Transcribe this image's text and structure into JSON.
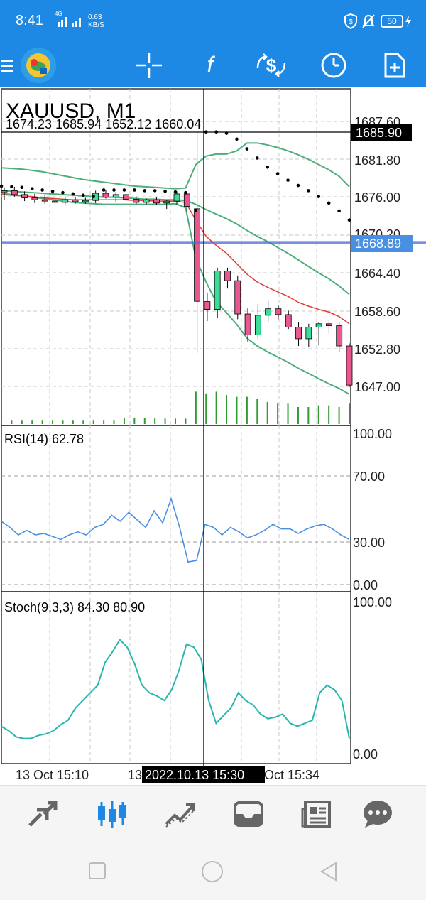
{
  "status_bar": {
    "time": "8:41",
    "network": "4G",
    "speed_value": "0.63",
    "speed_unit": "KB/S",
    "battery": "50"
  },
  "toolbar": {
    "items": [
      "menu-icon",
      "app-logo",
      "crosshair-icon",
      "indicators-icon",
      "trade-icon",
      "timeframe-icon",
      "add-object-icon"
    ]
  },
  "main_chart": {
    "symbol_title": "XAUUSD, M1",
    "ohlc": "1674.23 1685.94 1652.12 1660.04",
    "price_labels": [
      "1687.60",
      "1681.80",
      "1676.00",
      "1670.20",
      "1664.40",
      "1658.60",
      "1652.80",
      "1647.00"
    ],
    "crosshair_price": "1685.90",
    "bid_line_price": "1668.89",
    "crosshair_time": "2022.10.13 15:30",
    "time_labels": [
      "13 Oct 15:10",
      "13",
      "Oct 15:34"
    ]
  },
  "rsi": {
    "title": "RSI(14) 62.78",
    "levels": [
      "100.00",
      "70.00",
      "30.00",
      "0.00"
    ]
  },
  "stoch": {
    "title": "Stoch(9,3,3) 84.30 80.90",
    "levels": [
      "100.00",
      "0.00"
    ]
  },
  "colors": {
    "accent": "#1e88e5",
    "bull": "#3ddc97",
    "bear": "#e8578f",
    "ma_red": "#e53935",
    "bands_green": "#4caf7a",
    "rsi_line": "#4a90e2",
    "stoch_line": "#29b6ac",
    "bid_line": "#4a6bd8"
  },
  "chart_data": {
    "type": "candlestick",
    "candles": [
      {
        "o": 1676.8,
        "h": 1677.5,
        "l": 1675.6,
        "c": 1677.0
      },
      {
        "o": 1677.0,
        "h": 1677.6,
        "l": 1676.0,
        "c": 1676.4
      },
      {
        "o": 1676.4,
        "h": 1676.9,
        "l": 1675.4,
        "c": 1675.9
      },
      {
        "o": 1675.9,
        "h": 1676.5,
        "l": 1675.1,
        "c": 1675.6
      },
      {
        "o": 1675.6,
        "h": 1676.4,
        "l": 1675.0,
        "c": 1675.4
      },
      {
        "o": 1675.4,
        "h": 1675.9,
        "l": 1674.8,
        "c": 1675.2
      },
      {
        "o": 1675.2,
        "h": 1676.0,
        "l": 1674.9,
        "c": 1675.6
      },
      {
        "o": 1675.6,
        "h": 1676.0,
        "l": 1675.0,
        "c": 1675.3
      },
      {
        "o": 1675.3,
        "h": 1675.9,
        "l": 1675.0,
        "c": 1675.5
      },
      {
        "o": 1675.5,
        "h": 1677.0,
        "l": 1675.1,
        "c": 1676.6
      },
      {
        "o": 1676.6,
        "h": 1677.1,
        "l": 1675.8,
        "c": 1676.0
      },
      {
        "o": 1676.0,
        "h": 1676.8,
        "l": 1675.2,
        "c": 1676.4
      },
      {
        "o": 1676.4,
        "h": 1676.9,
        "l": 1675.4,
        "c": 1675.7
      },
      {
        "o": 1675.7,
        "h": 1676.1,
        "l": 1674.9,
        "c": 1675.2
      },
      {
        "o": 1675.2,
        "h": 1675.8,
        "l": 1674.9,
        "c": 1675.6
      },
      {
        "o": 1675.6,
        "h": 1676.0,
        "l": 1674.8,
        "c": 1675.1
      },
      {
        "o": 1675.1,
        "h": 1675.6,
        "l": 1674.2,
        "c": 1675.4
      },
      {
        "o": 1675.4,
        "h": 1676.9,
        "l": 1674.9,
        "c": 1676.5
      },
      {
        "o": 1676.5,
        "h": 1676.9,
        "l": 1673.8,
        "c": 1674.6
      },
      {
        "o": 1674.23,
        "h": 1685.94,
        "l": 1652.12,
        "c": 1660.04
      },
      {
        "o": 1660.0,
        "h": 1661.3,
        "l": 1657.0,
        "c": 1658.8
      },
      {
        "o": 1658.8,
        "h": 1665.2,
        "l": 1657.5,
        "c": 1664.7
      },
      {
        "o": 1664.7,
        "h": 1665.2,
        "l": 1662.0,
        "c": 1663.2
      },
      {
        "o": 1663.2,
        "h": 1664.0,
        "l": 1657.3,
        "c": 1658.1
      },
      {
        "o": 1658.1,
        "h": 1659.0,
        "l": 1653.8,
        "c": 1654.9
      },
      {
        "o": 1654.9,
        "h": 1659.6,
        "l": 1654.3,
        "c": 1657.9
      },
      {
        "o": 1657.9,
        "h": 1660.1,
        "l": 1656.8,
        "c": 1658.9
      },
      {
        "o": 1658.9,
        "h": 1659.4,
        "l": 1657.3,
        "c": 1658.0
      },
      {
        "o": 1658.0,
        "h": 1658.6,
        "l": 1655.8,
        "c": 1656.1
      },
      {
        "o": 1656.1,
        "h": 1656.9,
        "l": 1653.2,
        "c": 1654.3
      },
      {
        "o": 1654.3,
        "h": 1656.6,
        "l": 1653.0,
        "c": 1656.1
      },
      {
        "o": 1656.1,
        "h": 1656.8,
        "l": 1653.4,
        "c": 1656.6
      },
      {
        "o": 1656.6,
        "h": 1657.1,
        "l": 1655.1,
        "c": 1656.3
      },
      {
        "o": 1656.3,
        "h": 1656.9,
        "l": 1652.3,
        "c": 1653.2
      },
      {
        "o": 1653.2,
        "h": 1653.6,
        "l": 1646.9,
        "c": 1647.2
      }
    ],
    "ma_red": [
      1676.4,
      1676.3,
      1676.2,
      1676.1,
      1675.9,
      1675.8,
      1675.7,
      1675.6,
      1675.6,
      1675.6,
      1675.6,
      1675.6,
      1675.6,
      1675.5,
      1675.5,
      1675.4,
      1675.4,
      1675.4,
      1675.2,
      1672.5,
      1670.0,
      1668.6,
      1667.4,
      1665.8,
      1664.2,
      1663.0,
      1662.2,
      1661.5,
      1660.8,
      1659.9,
      1659.3,
      1658.8,
      1658.4,
      1657.7,
      1656.6
    ],
    "bb_upper": [
      1680.5,
      1680.4,
      1680.3,
      1680.1,
      1679.9,
      1679.6,
      1679.3,
      1679.0,
      1678.7,
      1678.5,
      1678.3,
      1678.1,
      1677.9,
      1677.7,
      1677.6,
      1677.5,
      1677.4,
      1677.3,
      1677.4,
      1681.0,
      1682.3,
      1682.6,
      1682.6,
      1683.1,
      1684.3,
      1684.3,
      1684.0,
      1683.6,
      1683.1,
      1682.5,
      1681.8,
      1681.0,
      1680.2,
      1679.2,
      1677.6
    ],
    "bb_mid": [
      1677.0,
      1676.9,
      1676.8,
      1676.7,
      1676.6,
      1676.5,
      1676.4,
      1676.3,
      1676.2,
      1676.1,
      1676.0,
      1676.0,
      1675.9,
      1675.8,
      1675.7,
      1675.7,
      1675.6,
      1675.6,
      1675.5,
      1674.9,
      1674.1,
      1673.4,
      1672.7,
      1671.9,
      1670.9,
      1670.0,
      1669.2,
      1668.3,
      1667.4,
      1666.4,
      1665.4,
      1664.4,
      1663.5,
      1662.4,
      1661.1
    ],
    "bb_lower": [
      1676.6,
      1676.4,
      1676.2,
      1676.0,
      1675.8,
      1675.6,
      1675.4,
      1675.2,
      1675.1,
      1675.0,
      1674.9,
      1674.9,
      1674.9,
      1674.9,
      1674.9,
      1674.9,
      1674.9,
      1675.0,
      1674.4,
      1666.6,
      1663.0,
      1659.9,
      1658.3,
      1656.5,
      1654.4,
      1653.2,
      1652.3,
      1651.5,
      1650.7,
      1649.8,
      1649.0,
      1648.2,
      1647.4,
      1646.7,
      1645.8
    ],
    "sar": [
      1677.7,
      1677.6,
      1677.5,
      1677.3,
      1677.1,
      1676.9,
      1676.7,
      1676.5,
      1676.3,
      1676.1,
      1677.1,
      1677.1,
      1677.1,
      1677.1,
      1677.0,
      1677.0,
      1676.9,
      1676.8,
      1676.7,
      1674.0,
      1686.0,
      1686.0,
      1685.8,
      1684.9,
      1683.4,
      1682.0,
      1680.6,
      1679.6,
      1678.6,
      1677.8,
      1677.0,
      1676.1,
      1675.1,
      1673.9,
      1672.5
    ],
    "volumes": [
      0.12,
      0.12,
      0.12,
      0.12,
      0.12,
      0.12,
      0.12,
      0.12,
      0.12,
      0.12,
      0.12,
      0.12,
      0.18,
      0.18,
      0.18,
      0.18,
      0.16,
      0.16,
      0.16,
      0.95,
      0.9,
      0.95,
      0.85,
      0.8,
      0.8,
      0.75,
      0.65,
      0.6,
      0.6,
      0.5,
      0.5,
      0.55,
      0.55,
      0.5,
      0.6
    ],
    "rsi_values": [
      42,
      38,
      33,
      36,
      33,
      34,
      32,
      30,
      33,
      35,
      33,
      38,
      40,
      46,
      42,
      48,
      43,
      38,
      49,
      41,
      57,
      38,
      15,
      16,
      40,
      38,
      33,
      38,
      35,
      31,
      33,
      36,
      40,
      37,
      37,
      34,
      37,
      39,
      40,
      37,
      33,
      30
    ],
    "stoch_values": [
      18,
      15,
      11,
      10,
      10,
      12,
      13,
      15,
      19,
      22,
      30,
      35,
      40,
      45,
      60,
      67,
      75,
      70,
      59,
      45,
      40,
      38,
      35,
      42,
      55,
      72,
      70,
      62,
      35,
      20,
      25,
      30,
      40,
      35,
      32,
      26,
      23,
      24,
      26,
      20,
      18,
      20,
      22,
      40,
      45,
      42,
      35,
      10
    ]
  }
}
